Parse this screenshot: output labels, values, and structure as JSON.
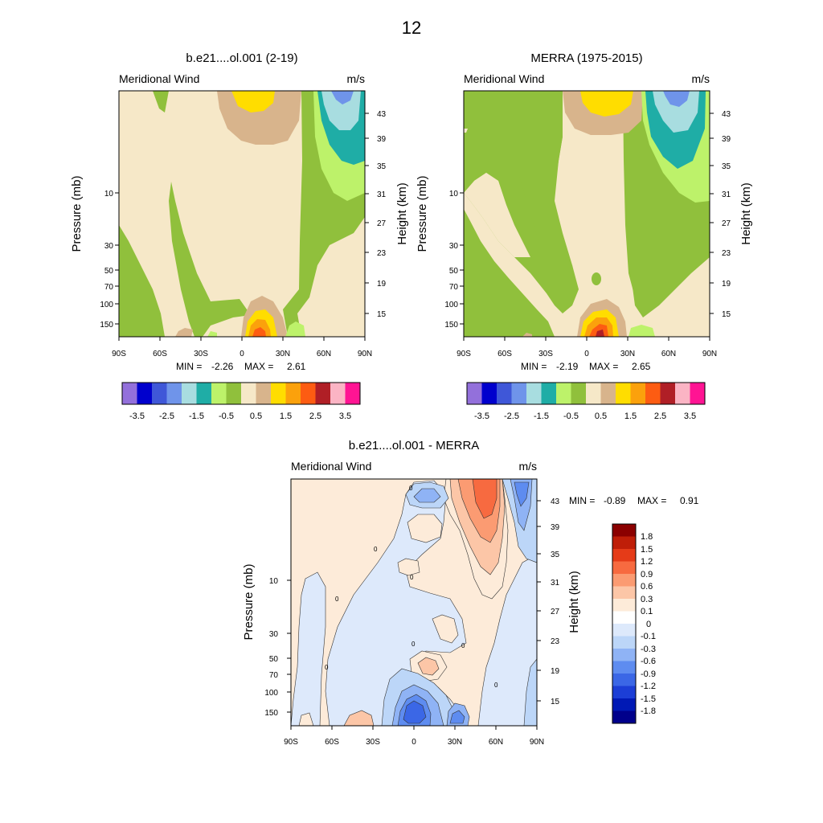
{
  "page_title": "12",
  "colors": {
    "full_palette": [
      "#9370db",
      "#0000cd",
      "#3f57d8",
      "#6f94ea",
      "#a8dde0",
      "#1fada6",
      "#bdf26a",
      "#90c03c",
      "#f6e8c8",
      "#d8b48c",
      "#ffdd00",
      "#fba10c",
      "#fd5c12",
      "#b01f26",
      "#fbb4c4",
      "#ff1493"
    ],
    "diff_palette": [
      "#00008b",
      "#0019b5",
      "#1c3ed6",
      "#3b67e6",
      "#5e8cf0",
      "#8fb3f5",
      "#bcd6f8",
      "#dde9fb",
      "#fdebd9",
      "#fcc6a7",
      "#fb9b72",
      "#f76a40",
      "#e53b18",
      "#bf1e08",
      "#8b0000"
    ]
  },
  "chart_data": [
    {
      "id": "model",
      "type": "contour",
      "title": "b.e21....ol.001 (2-19)",
      "left_subtitle": "Meridional Wind",
      "right_subtitle": "m/s",
      "xlabel": "",
      "ylabel": "Pressure (mb)",
      "y2label": "Height (km)",
      "x_ticks": [
        "90S",
        "60S",
        "30S",
        "0",
        "30N",
        "60N",
        "90N"
      ],
      "x_range": [
        -90,
        90
      ],
      "pressure_ticks": [
        "10",
        "30",
        "50",
        "70",
        "100",
        "150"
      ],
      "height_ticks": [
        "43",
        "39",
        "35",
        "31",
        "27",
        "23",
        "19",
        "15"
      ],
      "stats": {
        "min_label": "MIN =",
        "min": "-2.26",
        "max_label": "MAX =",
        "max": "2.61"
      },
      "colorbar_labels": [
        "-3.5",
        "-2.5",
        "-1.5",
        "-0.5",
        "0.5",
        "1.5",
        "2.5",
        "3.5"
      ],
      "levels": [
        -3.5,
        -3,
        -2.5,
        -2,
        -1.5,
        -1,
        -0.5,
        0,
        0.5,
        1,
        1.5,
        2,
        2.5,
        3,
        3.5
      ]
    },
    {
      "id": "obs",
      "type": "contour",
      "title": "MERRA (1975-2015)",
      "left_subtitle": "Meridional Wind",
      "right_subtitle": "m/s",
      "xlabel": "",
      "ylabel": "Pressure (mb)",
      "y2label": "Height (km)",
      "x_ticks": [
        "90S",
        "60S",
        "30S",
        "0",
        "30N",
        "60N",
        "90N"
      ],
      "x_range": [
        -90,
        90
      ],
      "pressure_ticks": [
        "10",
        "30",
        "50",
        "70",
        "100",
        "150"
      ],
      "height_ticks": [
        "43",
        "39",
        "35",
        "31",
        "27",
        "23",
        "19",
        "15"
      ],
      "stats": {
        "min_label": "MIN =",
        "min": "-2.19",
        "max_label": "MAX =",
        "max": "2.65"
      },
      "colorbar_labels": [
        "-3.5",
        "-2.5",
        "-1.5",
        "-0.5",
        "0.5",
        "1.5",
        "2.5",
        "3.5"
      ],
      "levels": [
        -3.5,
        -3,
        -2.5,
        -2,
        -1.5,
        -1,
        -0.5,
        0,
        0.5,
        1,
        1.5,
        2,
        2.5,
        3,
        3.5
      ]
    },
    {
      "id": "diff",
      "type": "contour",
      "title": "b.e21....ol.001 - MERRA",
      "left_subtitle": "Meridional Wind",
      "right_subtitle": "m/s",
      "xlabel": "",
      "ylabel": "Pressure (mb)",
      "y2label": "Height (km)",
      "x_ticks": [
        "90S",
        "60S",
        "30S",
        "0",
        "30N",
        "60N",
        "90N"
      ],
      "x_range": [
        -90,
        90
      ],
      "pressure_ticks": [
        "10",
        "30",
        "50",
        "70",
        "100",
        "150"
      ],
      "height_ticks": [
        "43",
        "39",
        "35",
        "31",
        "27",
        "23",
        "19",
        "15"
      ],
      "stats": {
        "min_label": "MIN =",
        "min": "-0.89",
        "max_label": "MAX =",
        "max": "0.91"
      },
      "colorbar_labels": [
        "1.8",
        "1.5",
        "1.2",
        "0.9",
        "0.6",
        "0.3",
        "0.1",
        "0",
        "-0.1",
        "-0.3",
        "-0.6",
        "-0.9",
        "-1.2",
        "-1.5",
        "-1.8"
      ],
      "contour_label": "0"
    }
  ]
}
